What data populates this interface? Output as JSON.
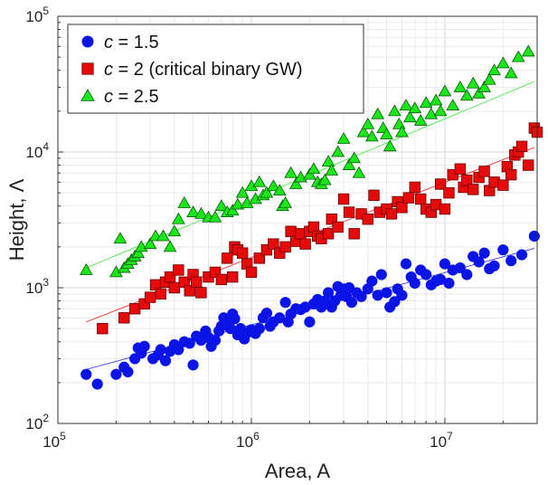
{
  "chart_data": {
    "type": "scatter",
    "xlabel": "Area, A",
    "ylabel": "Height, Λ",
    "xscale": "log",
    "yscale": "log",
    "xlim": [
      100000,
      30000000
    ],
    "ylim": [
      100,
      100000
    ],
    "x_ticks": [
      {
        "value": 100000,
        "base": "10",
        "exp": "5"
      },
      {
        "value": 1000000,
        "base": "10",
        "exp": "6"
      },
      {
        "value": 10000000,
        "base": "10",
        "exp": "7"
      }
    ],
    "y_ticks": [
      {
        "value": 100,
        "base": "10",
        "exp": "2"
      },
      {
        "value": 1000,
        "base": "10",
        "exp": "3"
      },
      {
        "value": 10000,
        "base": "10",
        "exp": "4"
      },
      {
        "value": 100000,
        "base": "10",
        "exp": "5"
      }
    ],
    "grid": true,
    "legend_position": "top-left",
    "series": [
      {
        "name": "c = 1.5",
        "legend_var": "c",
        "legend_rest": " = 1.5",
        "marker": "circle",
        "color": "#0a14e6",
        "fit": [
          [
            140000,
            250
          ],
          [
            29000000,
            1950
          ]
        ],
        "points": [
          [
            140000,
            230
          ],
          [
            160000,
            195
          ],
          [
            200000,
            230
          ],
          [
            220000,
            260
          ],
          [
            230000,
            240
          ],
          [
            250000,
            300
          ],
          [
            260000,
            360
          ],
          [
            270000,
            330
          ],
          [
            280000,
            370
          ],
          [
            310000,
            300
          ],
          [
            330000,
            320
          ],
          [
            340000,
            350
          ],
          [
            360000,
            290
          ],
          [
            380000,
            340
          ],
          [
            400000,
            380
          ],
          [
            420000,
            350
          ],
          [
            450000,
            400
          ],
          [
            480000,
            390
          ],
          [
            500000,
            270
          ],
          [
            520000,
            440
          ],
          [
            550000,
            410
          ],
          [
            580000,
            480
          ],
          [
            600000,
            430
          ],
          [
            620000,
            370
          ],
          [
            650000,
            410
          ],
          [
            680000,
            480
          ],
          [
            700000,
            520
          ],
          [
            720000,
            600
          ],
          [
            750000,
            550
          ],
          [
            780000,
            500
          ],
          [
            800000,
            640
          ],
          [
            820000,
            590
          ],
          [
            850000,
            450
          ],
          [
            880000,
            500
          ],
          [
            920000,
            420
          ],
          [
            960000,
            470
          ],
          [
            1000000,
            490
          ],
          [
            1050000,
            460
          ],
          [
            1100000,
            500
          ],
          [
            1150000,
            600
          ],
          [
            1200000,
            650
          ],
          [
            1250000,
            520
          ],
          [
            1300000,
            560
          ],
          [
            1400000,
            600
          ],
          [
            1500000,
            780
          ],
          [
            1550000,
            560
          ],
          [
            1600000,
            640
          ],
          [
            1700000,
            700
          ],
          [
            1800000,
            690
          ],
          [
            1900000,
            720
          ],
          [
            2000000,
            560
          ],
          [
            2100000,
            760
          ],
          [
            2200000,
            820
          ],
          [
            2300000,
            720
          ],
          [
            2400000,
            800
          ],
          [
            2500000,
            920
          ],
          [
            2600000,
            720
          ],
          [
            2700000,
            800
          ],
          [
            2800000,
            1020
          ],
          [
            2900000,
            880
          ],
          [
            3000000,
            980
          ],
          [
            3100000,
            860
          ],
          [
            3200000,
            1000
          ],
          [
            3300000,
            780
          ],
          [
            3500000,
            920
          ],
          [
            3700000,
            860
          ],
          [
            4000000,
            980
          ],
          [
            4200000,
            1120
          ],
          [
            4500000,
            880
          ],
          [
            4700000,
            1250
          ],
          [
            5000000,
            920
          ],
          [
            5200000,
            720
          ],
          [
            5500000,
            790
          ],
          [
            5700000,
            980
          ],
          [
            6000000,
            880
          ],
          [
            6300000,
            1500
          ],
          [
            6700000,
            1200
          ],
          [
            7000000,
            1080
          ],
          [
            7500000,
            1350
          ],
          [
            8000000,
            1250
          ],
          [
            8500000,
            1050
          ],
          [
            9000000,
            1120
          ],
          [
            9500000,
            1150
          ],
          [
            10000000,
            1500
          ],
          [
            10500000,
            1080
          ],
          [
            11000000,
            1350
          ],
          [
            12000000,
            1400
          ],
          [
            13000000,
            1250
          ],
          [
            14000000,
            1700
          ],
          [
            15000000,
            1550
          ],
          [
            16000000,
            1800
          ],
          [
            17000000,
            1380
          ],
          [
            18000000,
            1450
          ],
          [
            20000000,
            1900
          ],
          [
            22000000,
            1580
          ],
          [
            25000000,
            1750
          ],
          [
            29000000,
            2400
          ]
        ]
      },
      {
        "name": "c = 2 (critical binary GW)",
        "legend_var": "c",
        "legend_rest": " = 2 (critical binary GW)",
        "marker": "square",
        "color": "#e60a0a",
        "fit": [
          [
            140000,
            560
          ],
          [
            29000000,
            10800
          ]
        ],
        "points": [
          [
            170000,
            500
          ],
          [
            220000,
            600
          ],
          [
            250000,
            700
          ],
          [
            280000,
            760
          ],
          [
            300000,
            850
          ],
          [
            320000,
            1050
          ],
          [
            340000,
            900
          ],
          [
            360000,
            1100
          ],
          [
            380000,
            1200
          ],
          [
            400000,
            1000
          ],
          [
            420000,
            1350
          ],
          [
            450000,
            1100
          ],
          [
            480000,
            950
          ],
          [
            500000,
            1250
          ],
          [
            520000,
            1100
          ],
          [
            550000,
            920
          ],
          [
            600000,
            1200
          ],
          [
            650000,
            1300
          ],
          [
            700000,
            1150
          ],
          [
            750000,
            1650
          ],
          [
            800000,
            1200
          ],
          [
            820000,
            2000
          ],
          [
            850000,
            1900
          ],
          [
            900000,
            1800
          ],
          [
            950000,
            1500
          ],
          [
            1000000,
            1300
          ],
          [
            1100000,
            1650
          ],
          [
            1200000,
            1900
          ],
          [
            1300000,
            2100
          ],
          [
            1400000,
            1800
          ],
          [
            1500000,
            2000
          ],
          [
            1600000,
            2600
          ],
          [
            1700000,
            2200
          ],
          [
            1800000,
            2500
          ],
          [
            1900000,
            2100
          ],
          [
            2000000,
            2600
          ],
          [
            2100000,
            2800
          ],
          [
            2200000,
            2400
          ],
          [
            2300000,
            2300
          ],
          [
            2500000,
            2500
          ],
          [
            2600000,
            3200
          ],
          [
            2800000,
            2800
          ],
          [
            3000000,
            4500
          ],
          [
            3200000,
            3600
          ],
          [
            3400000,
            2500
          ],
          [
            3700000,
            3500
          ],
          [
            4000000,
            3200
          ],
          [
            4300000,
            4800
          ],
          [
            4600000,
            3600
          ],
          [
            5000000,
            3800
          ],
          [
            5300000,
            3500
          ],
          [
            5700000,
            4300
          ],
          [
            6000000,
            3900
          ],
          [
            6500000,
            4600
          ],
          [
            7000000,
            5500
          ],
          [
            7500000,
            4500
          ],
          [
            8000000,
            3800
          ],
          [
            8500000,
            3600
          ],
          [
            9000000,
            4100
          ],
          [
            9500000,
            5800
          ],
          [
            10000000,
            3800
          ],
          [
            10500000,
            5000
          ],
          [
            11000000,
            6800
          ],
          [
            12000000,
            7500
          ],
          [
            12500000,
            5500
          ],
          [
            13000000,
            6200
          ],
          [
            14000000,
            5300
          ],
          [
            15000000,
            6500
          ],
          [
            16000000,
            7200
          ],
          [
            17000000,
            5200
          ],
          [
            18000000,
            6000
          ],
          [
            20000000,
            5700
          ],
          [
            21000000,
            7800
          ],
          [
            22000000,
            6800
          ],
          [
            23000000,
            9500
          ],
          [
            24000000,
            10000
          ],
          [
            25000000,
            11000
          ],
          [
            27000000,
            8000
          ],
          [
            29000000,
            15000
          ],
          [
            30000000,
            14000
          ]
        ]
      },
      {
        "name": "c = 2.5",
        "legend_var": "c",
        "legend_rest": " = 2.5",
        "marker": "triangle",
        "color": "#1ae61a",
        "fit": [
          [
            140000,
            1400
          ],
          [
            29000000,
            33000
          ]
        ],
        "points": [
          [
            140000,
            1350
          ],
          [
            200000,
            1300
          ],
          [
            210000,
            2300
          ],
          [
            220000,
            1400
          ],
          [
            230000,
            1500
          ],
          [
            240000,
            1600
          ],
          [
            250000,
            1700
          ],
          [
            260000,
            1800
          ],
          [
            270000,
            2000
          ],
          [
            300000,
            2100
          ],
          [
            320000,
            2400
          ],
          [
            350000,
            2400
          ],
          [
            380000,
            2000
          ],
          [
            400000,
            2600
          ],
          [
            420000,
            3200
          ],
          [
            450000,
            4200
          ],
          [
            500000,
            3600
          ],
          [
            550000,
            3500
          ],
          [
            600000,
            3300
          ],
          [
            650000,
            3300
          ],
          [
            700000,
            4000
          ],
          [
            750000,
            3600
          ],
          [
            800000,
            3700
          ],
          [
            850000,
            4100
          ],
          [
            900000,
            5000
          ],
          [
            950000,
            4200
          ],
          [
            1000000,
            5600
          ],
          [
            1050000,
            4500
          ],
          [
            1100000,
            6000
          ],
          [
            1150000,
            4800
          ],
          [
            1200000,
            5000
          ],
          [
            1300000,
            5600
          ],
          [
            1400000,
            5200
          ],
          [
            1450000,
            4000
          ],
          [
            1500000,
            4200
          ],
          [
            1600000,
            7000
          ],
          [
            1700000,
            5800
          ],
          [
            1800000,
            6500
          ],
          [
            2000000,
            6800
          ],
          [
            2100000,
            7500
          ],
          [
            2200000,
            6000
          ],
          [
            2300000,
            5800
          ],
          [
            2400000,
            6200
          ],
          [
            2500000,
            8500
          ],
          [
            2600000,
            7300
          ],
          [
            2800000,
            10000
          ],
          [
            3000000,
            12500
          ],
          [
            3200000,
            8000
          ],
          [
            3400000,
            9000
          ],
          [
            3600000,
            7000
          ],
          [
            3800000,
            14000
          ],
          [
            4000000,
            16000
          ],
          [
            4200000,
            13000
          ],
          [
            4500000,
            19000
          ],
          [
            4800000,
            15000
          ],
          [
            5000000,
            13500
          ],
          [
            5200000,
            11000
          ],
          [
            5500000,
            20000
          ],
          [
            5800000,
            16000
          ],
          [
            6000000,
            14000
          ],
          [
            6300000,
            22000
          ],
          [
            6600000,
            18000
          ],
          [
            7000000,
            21000
          ],
          [
            7500000,
            17000
          ],
          [
            8000000,
            23000
          ],
          [
            8500000,
            19000
          ],
          [
            9000000,
            24000
          ],
          [
            9500000,
            20000
          ],
          [
            10000000,
            28000
          ],
          [
            11000000,
            22000
          ],
          [
            12000000,
            30000
          ],
          [
            13000000,
            26000
          ],
          [
            14000000,
            32000
          ],
          [
            15000000,
            27000
          ],
          [
            16000000,
            30000
          ],
          [
            17000000,
            34000
          ],
          [
            18000000,
            40000
          ],
          [
            20000000,
            45000
          ],
          [
            22000000,
            38000
          ],
          [
            24000000,
            50000
          ],
          [
            27000000,
            55000
          ]
        ]
      }
    ]
  }
}
